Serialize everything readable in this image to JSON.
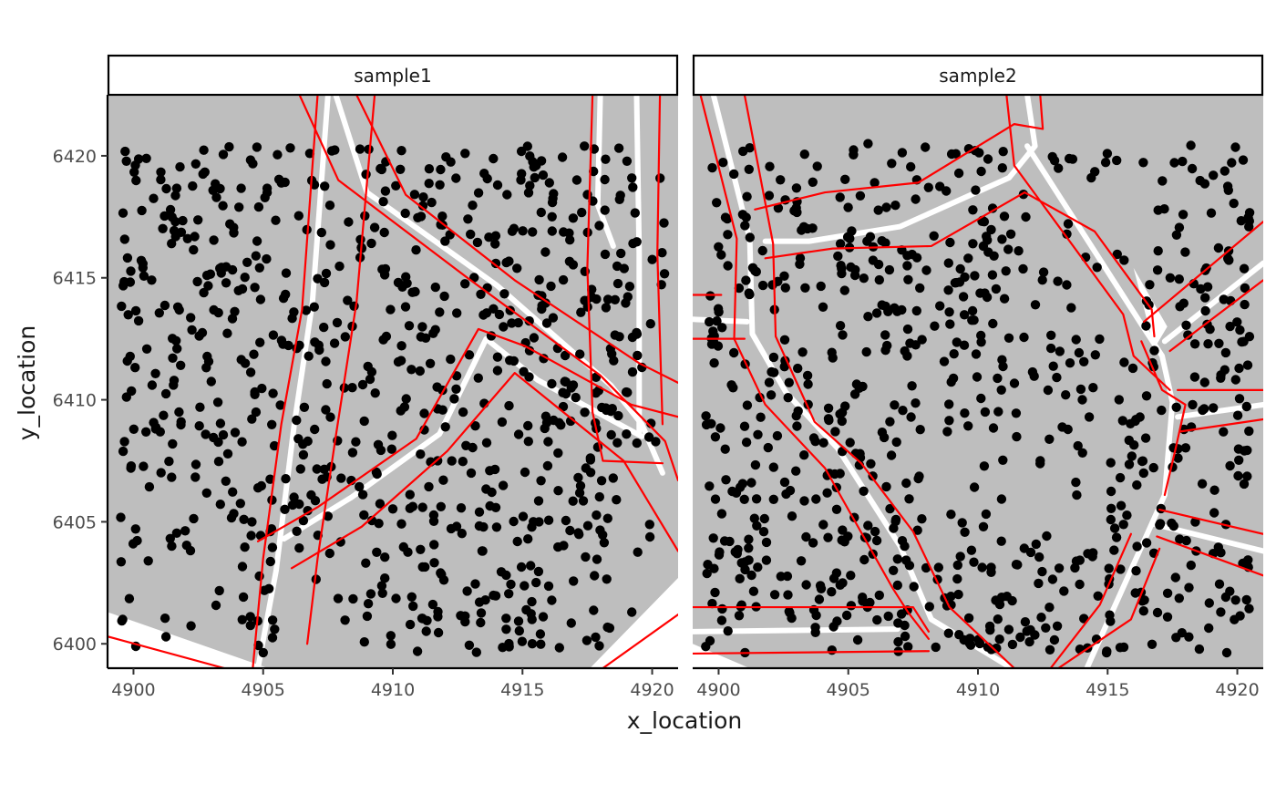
{
  "chart_data": {
    "type": "scatter",
    "xlabel": "x_location",
    "ylabel": "y_location",
    "xlim": [
      4899,
      4921
    ],
    "ylim": [
      6399,
      6422.5
    ],
    "x_ticks": [
      4900,
      4905,
      4910,
      4915,
      4920
    ],
    "y_ticks": [
      6400,
      6405,
      6410,
      6415,
      6420
    ],
    "x_tick_labels": [
      "4900",
      "4905",
      "4910",
      "4915",
      "4920"
    ],
    "y_tick_labels": [
      "6400",
      "6405",
      "6410",
      "6415",
      "6420"
    ],
    "grid": false,
    "legend": "none",
    "colors": {
      "panel_background": "#bebebe",
      "points": "#000000",
      "boundary_lines": "#ff0000",
      "road_lines": "#ffffff",
      "strip_fill": "#ffffff",
      "strip_border": "#000000"
    },
    "facets": [
      {
        "label": "sample1",
        "white_regions": [
          [
            [
              4899,
              6399
            ],
            [
              4905.2,
              6399
            ],
            [
              4899,
              6401.3
            ]
          ],
          [
            [
              4917.6,
              6399
            ],
            [
              4921,
              6399
            ],
            [
              4921,
              6402.7
            ]
          ]
        ],
        "roads": [
          [
            [
              4904.8,
              6399
            ],
            [
              4905.5,
              6403
            ],
            [
              4906.2,
              6409
            ],
            [
              4906.9,
              6414
            ],
            [
              4907.5,
              6422.5
            ]
          ],
          [
            [
              4907.8,
              6422.5
            ],
            [
              4909,
              6418.5
            ],
            [
              4914,
              6414.7
            ],
            [
              4918.4,
              6410.6
            ],
            [
              4919.6,
              6409
            ],
            [
              4920.4,
              6407
            ]
          ],
          [
            [
              4905.8,
              6404.3
            ],
            [
              4908.4,
              6406
            ],
            [
              4911.8,
              6408.6
            ],
            [
              4913.6,
              6412.5
            ],
            [
              4915.6,
              6410.8
            ],
            [
              4919.6,
              6408.5
            ]
          ],
          [
            [
              4919.4,
              6422.5
            ],
            [
              4919.5,
              6416
            ],
            [
              4919.5,
              6408.6
            ]
          ],
          [
            [
              4918,
              6422.5
            ],
            [
              4917.9,
              6418
            ],
            [
              4918.5,
              6416.3
            ]
          ]
        ],
        "boundaries": [
          [
            [
              4904.6,
              6399
            ],
            [
              4905,
              6403.5
            ],
            [
              4905.7,
              6409
            ],
            [
              4906.5,
              6413.7
            ],
            [
              4907.1,
              6422.5
            ]
          ],
          [
            [
              4906.7,
              6400
            ],
            [
              4907.1,
              6403.5
            ],
            [
              4907.8,
              6408.5
            ],
            [
              4908.6,
              6414
            ],
            [
              4909.3,
              6422.5
            ]
          ],
          [
            [
              4906.4,
              6422.5
            ],
            [
              4907.9,
              6419
            ],
            [
              4913,
              6414.9
            ],
            [
              4918,
              6411
            ],
            [
              4920.5,
              6408.3
            ],
            [
              4921,
              6406.7
            ]
          ],
          [
            [
              4908.6,
              6422.5
            ],
            [
              4910.5,
              6418.4
            ],
            [
              4914.7,
              6414.9
            ],
            [
              4919.5,
              6411.5
            ],
            [
              4921,
              6410.7
            ]
          ],
          [
            [
              4904.8,
              6404.2
            ],
            [
              4907.1,
              6405.6
            ],
            [
              4910.9,
              6408.4
            ],
            [
              4913.3,
              6412.9
            ],
            [
              4915.1,
              6412.2
            ],
            [
              4919.2,
              6409.8
            ],
            [
              4921,
              6409.3
            ]
          ],
          [
            [
              4906.1,
              6403.1
            ],
            [
              4908.8,
              6404.8
            ],
            [
              4912.1,
              6407.9
            ],
            [
              4914.7,
              6411.1
            ],
            [
              4918.9,
              6407.5
            ],
            [
              4921,
              6403.8
            ]
          ],
          [
            [
              4917.7,
              6422.5
            ],
            [
              4917.5,
              6415.4
            ],
            [
              4917.7,
              6409.5
            ],
            [
              4918.1,
              6407.5
            ],
            [
              4920.4,
              6407.4
            ]
          ],
          [
            [
              4920.3,
              6422.5
            ],
            [
              4920.2,
              6416
            ],
            [
              4920.4,
              6409
            ]
          ],
          [
            [
              4899,
              6400.3
            ],
            [
              4903.5,
              6399
            ]
          ],
          [
            [
              4918.1,
              6399
            ],
            [
              4921,
              6401.2
            ]
          ]
        ]
      },
      {
        "label": "sample2",
        "white_regions": [
          [
            [
              4899,
              6399
            ],
            [
              4901.2,
              6399
            ],
            [
              4899,
              6400
            ]
          ],
          [
            [
              4916,
              6415.4
            ],
            [
              4917.3,
              6413
            ],
            [
              4916.8,
              6412.1
            ]
          ]
        ],
        "roads": [
          [
            [
              4899.8,
              6422.5
            ],
            [
              4901.2,
              6416.6
            ],
            [
              4901.3,
              6412.7
            ],
            [
              4902.6,
              6410.3
            ],
            [
              4904.6,
              6408
            ],
            [
              4907,
              6404
            ],
            [
              4908.2,
              6401
            ],
            [
              4911.3,
              6399
            ]
          ],
          [
            [
              4901.8,
              6416.5
            ],
            [
              4903.5,
              6416.5
            ],
            [
              4907,
              6417.1
            ],
            [
              4911.2,
              6419.1
            ],
            [
              4912.2,
              6420.4
            ],
            [
              4911.9,
              6422.5
            ]
          ],
          [
            [
              4899,
              6413.3
            ],
            [
              4901.1,
              6413.2
            ]
          ],
          [
            [
              4899,
              6400.5
            ],
            [
              4906.9,
              6400.6
            ]
          ],
          [
            [
              4911.9,
              6420.4
            ],
            [
              4916.3,
              6413.1
            ],
            [
              4917.1,
              6411.8
            ],
            [
              4917.5,
              6409.9
            ],
            [
              4917.2,
              6406.1
            ],
            [
              4914.2,
              6399
            ]
          ],
          [
            [
              4917.2,
              6412.4
            ],
            [
              4921,
              6415.6
            ]
          ],
          [
            [
              4917.7,
              6409.3
            ],
            [
              4921,
              6409.8
            ]
          ],
          [
            [
              4916.8,
              6404.9
            ],
            [
              4921,
              6403.8
            ]
          ]
        ],
        "boundaries": [
          [
            [
              4899.3,
              6422.5
            ],
            [
              4900.7,
              6416.6
            ],
            [
              4900.6,
              6412.5
            ],
            [
              4901.8,
              6409.8
            ],
            [
              4904.1,
              6407.2
            ],
            [
              4906.7,
              6402.3
            ],
            [
              4907.3,
              6401.3
            ],
            [
              4908.1,
              6400.2
            ]
          ],
          [
            [
              4901,
              6422.5
            ],
            [
              4902.1,
              6416.4
            ],
            [
              4902.2,
              6412.6
            ],
            [
              4903.7,
              6409.1
            ],
            [
              4905.5,
              6407.4
            ],
            [
              4907.5,
              6404.6
            ],
            [
              4908.9,
              6401.5
            ],
            [
              4911.4,
              6399
            ]
          ],
          [
            [
              4901.4,
              6417.8
            ],
            [
              4904.1,
              6418.5
            ],
            [
              4907.7,
              6418.9
            ],
            [
              4911.4,
              6421.3
            ],
            [
              4912.5,
              6421.1
            ],
            [
              4912.4,
              6422.5
            ]
          ],
          [
            [
              4901.8,
              6415.8
            ],
            [
              4904.4,
              6416.2
            ],
            [
              4908.2,
              6416.3
            ],
            [
              4911.8,
              6418.5
            ],
            [
              4914.5,
              6416.9
            ],
            [
              4916.7,
              6413.7
            ],
            [
              4916.8,
              6412.6
            ]
          ],
          [
            [
              4899,
              6414.3
            ],
            [
              4900.1,
              6414.3
            ]
          ],
          [
            [
              4899,
              6412.5
            ],
            [
              4901,
              6412.5
            ]
          ],
          [
            [
              4899,
              6401.5
            ],
            [
              4907.5,
              6401.5
            ],
            [
              4908.1,
              6400.5
            ]
          ],
          [
            [
              4899,
              6399.6
            ],
            [
              4908.1,
              6399.7
            ]
          ],
          [
            [
              4911.1,
              6422.5
            ],
            [
              4911.4,
              6419.6
            ],
            [
              4915.6,
              6413.5
            ],
            [
              4916,
              6411.8
            ],
            [
              4917.4,
              6410.4
            ]
          ],
          [
            [
              4916.3,
              6412.4
            ],
            [
              4917.1,
              6410.4
            ],
            [
              4918,
              6409.8
            ],
            [
              4917.6,
              6407.9
            ],
            [
              4917.2,
              6406.1
            ]
          ],
          [
            [
              4915.9,
              6404.5
            ],
            [
              4914.7,
              6401.6
            ],
            [
              4912.8,
              6399
            ]
          ],
          [
            [
              4917,
              6403.9
            ],
            [
              4915.9,
              6401
            ],
            [
              4913.1,
              6399
            ]
          ],
          [
            [
              4917.4,
              6412
            ],
            [
              4921,
              6414.9
            ]
          ],
          [
            [
              4916.4,
              6413.2
            ],
            [
              4921,
              6417.3
            ]
          ],
          [
            [
              4917.7,
              6410.4
            ],
            [
              4921,
              6410.4
            ]
          ],
          [
            [
              4917.8,
              6408.7
            ],
            [
              4921,
              6409.2
            ]
          ],
          [
            [
              4917,
              6405.5
            ],
            [
              4921,
              6404.5
            ]
          ],
          [
            [
              4916.9,
              6404.4
            ],
            [
              4921,
              6402.8
            ]
          ]
        ]
      }
    ]
  }
}
